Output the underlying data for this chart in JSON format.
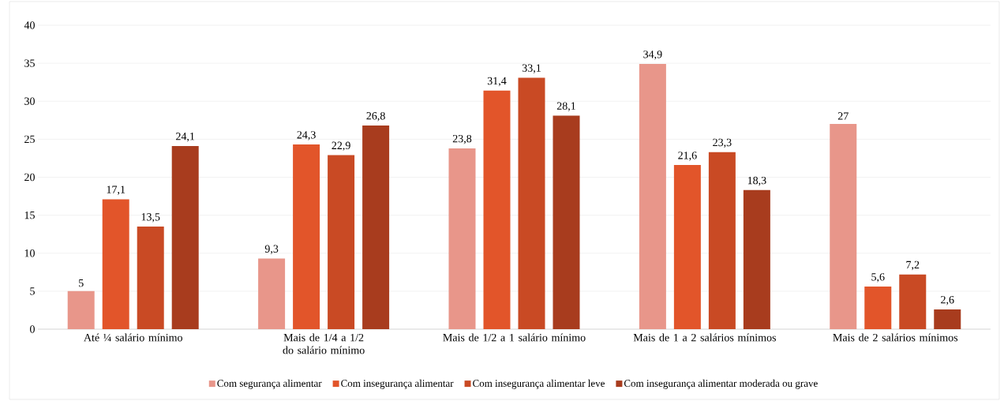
{
  "chart_data": {
    "type": "bar",
    "categories": [
      "Até ¼ salário mínimo",
      "Mais de 1/4 a 1/2 do salário mínimo",
      "Mais de 1/2 a 1 salário mínimo",
      "Mais de 1 a 2 salários mínimos",
      "Mais de 2 salários mínimos"
    ],
    "series": [
      {
        "name": "Com segurança alimentar",
        "color": "#e8968a",
        "values": [
          5,
          9.3,
          23.8,
          34.9,
          27
        ],
        "value_labels": [
          "5",
          "9,3",
          "23,8",
          "34,9",
          "27"
        ]
      },
      {
        "name": "Com insegurança alimentar",
        "color": "#e2552a",
        "values": [
          17.1,
          24.3,
          31.4,
          21.6,
          5.6
        ],
        "value_labels": [
          "17,1",
          "24,3",
          "31,4",
          "21,6",
          "5,6"
        ]
      },
      {
        "name": "Com insegurança alimentar leve",
        "color": "#c94a24",
        "values": [
          13.5,
          22.9,
          33.1,
          23.3,
          7.2
        ],
        "value_labels": [
          "13,5",
          "22,9",
          "33,1",
          "23,3",
          "7,2"
        ]
      },
      {
        "name": "Com insegurança alimentar moderada ou grave",
        "color": "#a83c1e",
        "values": [
          24.1,
          26.8,
          28.1,
          18.3,
          2.6
        ],
        "value_labels": [
          "24,1",
          "26,8",
          "28,1",
          "18,3",
          "2,6"
        ]
      }
    ],
    "ylim": [
      0,
      40
    ],
    "yticks": [
      0,
      5,
      10,
      15,
      20,
      25,
      30,
      35,
      40
    ],
    "grid": "y",
    "legend": "bottom"
  }
}
